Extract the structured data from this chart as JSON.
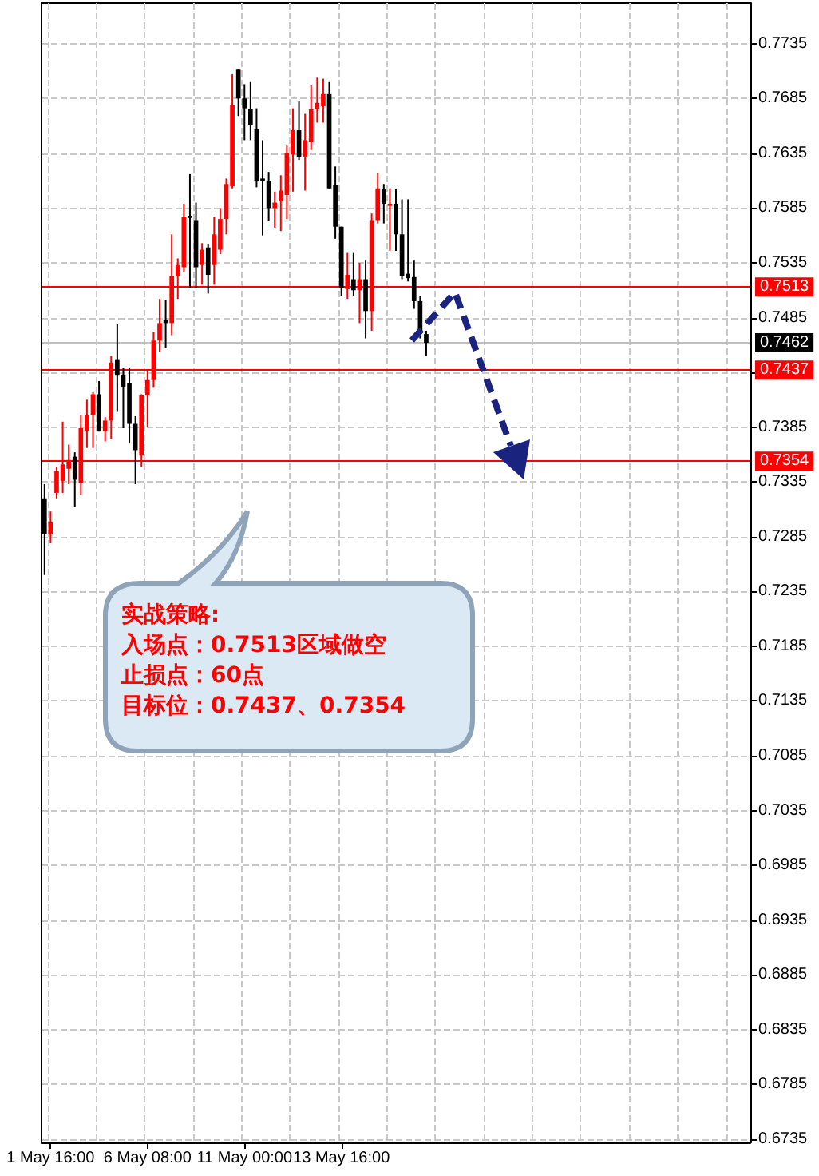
{
  "chart_data": {
    "type": "candlestick",
    "categories": [
      null,
      "1 May 16:00",
      null,
      null,
      null,
      null,
      null,
      null,
      null,
      null,
      null,
      null,
      null,
      null,
      null,
      null,
      null,
      "6 May 08:00",
      null,
      null,
      null,
      null,
      null,
      null,
      null,
      null,
      null,
      null,
      null,
      null,
      null,
      null,
      null,
      "11 May 00:00",
      null,
      null,
      null,
      null,
      null,
      null,
      null,
      null,
      null,
      null,
      null,
      null,
      null,
      null,
      null,
      "13 May 16:00",
      null,
      null,
      null,
      null,
      null,
      null,
      null,
      null,
      null,
      null,
      null,
      null,
      null,
      null,
      null,
      null,
      null,
      null,
      null,
      null,
      null,
      null,
      null,
      null,
      null,
      null,
      null,
      null,
      null,
      null,
      null,
      null,
      null,
      null,
      null,
      null,
      null,
      null,
      null,
      null,
      null,
      null,
      null,
      null,
      null,
      null,
      null,
      null,
      null,
      null,
      null,
      null,
      null,
      null,
      null,
      null,
      null,
      null,
      null,
      null,
      null,
      null,
      null,
      null,
      null,
      null,
      null
    ],
    "ohlc": [
      [
        0.732,
        0.7333,
        0.725,
        0.7287
      ],
      [
        0.7287,
        0.7308,
        0.7279,
        0.7298
      ],
      [
        0.7325,
        0.7349,
        0.732,
        0.7345
      ],
      [
        0.7336,
        0.739,
        0.7325,
        0.7351
      ],
      [
        0.7347,
        0.7369,
        0.7333,
        0.7355
      ],
      [
        0.7358,
        0.7362,
        0.7312,
        0.7337
      ],
      [
        0.7334,
        0.7396,
        0.7323,
        0.7384
      ],
      [
        0.7381,
        0.741,
        0.7366,
        0.7396
      ],
      [
        0.7396,
        0.7417,
        0.7366,
        0.7415
      ],
      [
        0.7415,
        0.7427,
        0.7381,
        0.7381
      ],
      [
        0.7381,
        0.7394,
        0.7372,
        0.7391
      ],
      [
        0.7391,
        0.745,
        0.7374,
        0.7444
      ],
      [
        0.7447,
        0.7479,
        0.7399,
        0.7432
      ],
      [
        0.7433,
        0.7439,
        0.7384,
        0.7422
      ],
      [
        0.7425,
        0.7439,
        0.737,
        0.7388
      ],
      [
        0.7388,
        0.7395,
        0.7333,
        0.7364
      ],
      [
        0.7359,
        0.7415,
        0.7349,
        0.7414
      ],
      [
        0.7414,
        0.7437,
        0.7385,
        0.7428
      ],
      [
        0.7428,
        0.7472,
        0.7421,
        0.7464
      ],
      [
        0.7464,
        0.7502,
        0.7454,
        0.748
      ],
      [
        0.7483,
        0.7501,
        0.7457,
        0.748
      ],
      [
        0.748,
        0.7561,
        0.7469,
        0.7523
      ],
      [
        0.7523,
        0.7539,
        0.7502,
        0.7533
      ],
      [
        0.7531,
        0.7589,
        0.7527,
        0.7577
      ],
      [
        0.7578,
        0.7616,
        0.7512,
        0.7576
      ],
      [
        0.7574,
        0.759,
        0.7512,
        0.7531
      ],
      [
        0.7533,
        0.7553,
        0.7515,
        0.7547
      ],
      [
        0.7549,
        0.7552,
        0.7507,
        0.7524
      ],
      [
        0.7533,
        0.7577,
        0.7515,
        0.7561
      ],
      [
        0.7547,
        0.7585,
        0.7543,
        0.7575
      ],
      [
        0.7575,
        0.7612,
        0.7561,
        0.7607
      ],
      [
        0.7605,
        0.7707,
        0.7603,
        0.7679
      ],
      [
        0.7712,
        0.7712,
        0.7669,
        0.7685
      ],
      [
        0.7685,
        0.7698,
        0.7647,
        0.7676
      ],
      [
        0.7675,
        0.77,
        0.7647,
        0.7661
      ],
      [
        0.7657,
        0.7676,
        0.7604,
        0.761
      ],
      [
        0.7612,
        0.7647,
        0.756,
        0.761
      ],
      [
        0.761,
        0.7618,
        0.7573,
        0.7585
      ],
      [
        0.7585,
        0.76,
        0.7567,
        0.759
      ],
      [
        0.7591,
        0.7615,
        0.7564,
        0.7601
      ],
      [
        0.7597,
        0.7642,
        0.7575,
        0.7635
      ],
      [
        0.7634,
        0.7676,
        0.76,
        0.7656
      ],
      [
        0.7656,
        0.7683,
        0.7629,
        0.7632
      ],
      [
        0.7632,
        0.7671,
        0.7601,
        0.7647
      ],
      [
        0.7645,
        0.7697,
        0.7638,
        0.7675
      ],
      [
        0.7675,
        0.7704,
        0.7663,
        0.7681
      ],
      [
        0.7678,
        0.7703,
        0.7663,
        0.7689
      ],
      [
        0.7689,
        0.77,
        0.7603,
        0.7603
      ],
      [
        0.7606,
        0.7623,
        0.7557,
        0.7568
      ],
      [
        0.7568,
        0.7568,
        0.7505,
        0.7512
      ],
      [
        0.7511,
        0.7544,
        0.7502,
        0.7524
      ],
      [
        0.752,
        0.7544,
        0.7505,
        0.751
      ],
      [
        0.751,
        0.7535,
        0.748,
        0.752
      ],
      [
        0.752,
        0.7537,
        0.7466,
        0.7491
      ],
      [
        0.7491,
        0.758,
        0.7473,
        0.7574
      ],
      [
        0.7574,
        0.7617,
        0.7571,
        0.7603
      ],
      [
        0.7602,
        0.7607,
        0.7571,
        0.7589
      ],
      [
        0.7587,
        0.7603,
        0.7546,
        0.7589
      ],
      [
        0.7589,
        0.7602,
        0.7546,
        0.7561
      ],
      [
        0.7561,
        0.7593,
        0.752,
        0.7523
      ],
      [
        0.7525,
        0.7593,
        0.7518,
        0.7521
      ],
      [
        0.7522,
        0.7537,
        0.7493,
        0.75
      ],
      [
        0.75,
        0.7505,
        0.7466,
        0.7471
      ],
      [
        0.747,
        0.7473,
        0.745,
        0.7462
      ],
      null,
      null,
      null,
      null,
      null,
      null,
      null,
      null,
      null,
      null,
      null,
      null,
      null,
      null,
      null,
      null,
      null,
      null,
      null,
      null,
      null,
      null,
      null,
      null,
      null,
      null,
      null,
      null,
      null,
      null,
      null,
      null,
      null,
      null,
      null,
      null,
      null,
      null,
      null,
      null,
      null,
      null,
      null,
      null,
      null,
      null,
      null,
      null,
      null,
      null,
      null,
      null,
      null
    ],
    "colors": [
      "#000000",
      "#ff0000",
      "#ff0000",
      "#ff0000",
      "#ff0000",
      "#000000",
      "#ff0000",
      "#ff0000",
      "#ff0000",
      "#000000",
      "#ff0000",
      "#ff0000",
      "#000000",
      "#000000",
      "#000000",
      "#000000",
      "#ff0000",
      "#ff0000",
      "#ff0000",
      "#ff0000",
      "#000000",
      "#ff0000",
      "#ff0000",
      "#ff0000",
      "#000000",
      "#000000",
      "#ff0000",
      "#000000",
      "#ff0000",
      "#ff0000",
      "#ff0000",
      "#ff0000",
      "#000000",
      "#000000",
      "#000000",
      "#000000",
      "#000000",
      "#000000",
      "#ff0000",
      "#ff0000",
      "#ff0000",
      "#ff0000",
      "#000000",
      "#ff0000",
      "#ff0000",
      "#ff0000",
      "#ff0000",
      "#000000",
      "#000000",
      "#000000",
      "#ff0000",
      "#000000",
      "#ff0000",
      "#000000",
      "#ff0000",
      "#ff0000",
      "#000000",
      "#ff0000",
      "#000000",
      "#000000",
      "#000000",
      "#000000",
      "#000000",
      "#000000",
      null,
      null,
      null,
      null,
      null,
      null,
      null,
      null,
      null,
      null,
      null,
      null,
      null,
      null,
      null,
      null,
      null,
      null,
      null,
      null,
      null,
      null,
      null,
      null,
      null,
      null,
      null,
      null,
      null,
      null,
      null,
      null,
      null,
      null,
      null,
      null,
      null,
      null,
      null,
      null,
      null,
      null,
      null,
      null,
      null,
      null,
      null,
      null,
      null,
      null,
      null,
      null,
      null
    ],
    "ylim": [
      0.6732,
      0.7772
    ],
    "yticks": [
      0.6735,
      0.6785,
      0.6835,
      0.6885,
      0.6935,
      0.6985,
      0.7035,
      0.7085,
      0.7135,
      0.7185,
      0.7235,
      0.7285,
      0.7335,
      0.7385,
      {
        "value": 0.7435,
        "label": null
      },
      0.7485,
      0.7535,
      0.7585,
      0.7635,
      0.7685,
      0.7735
    ],
    "grid": true,
    "ref_lines": [
      {
        "axis": "y",
        "value": 0.7513,
        "label": "0.7513",
        "color": "#ff0000"
      },
      {
        "axis": "y",
        "value": 0.7437,
        "label": "0.7437",
        "color": "#ff0000"
      },
      {
        "axis": "y",
        "value": 0.7354,
        "label": "0.7354",
        "color": "#ff0000"
      },
      {
        "axis": "y",
        "value": 0.7462,
        "label": "0.7462",
        "color": "#c0c0c0"
      }
    ],
    "annotations": [
      "实战策略:",
      "入场点：0.7513区域做空",
      "止损点：60点",
      "目标位：0.7437、0.7354"
    ]
  }
}
